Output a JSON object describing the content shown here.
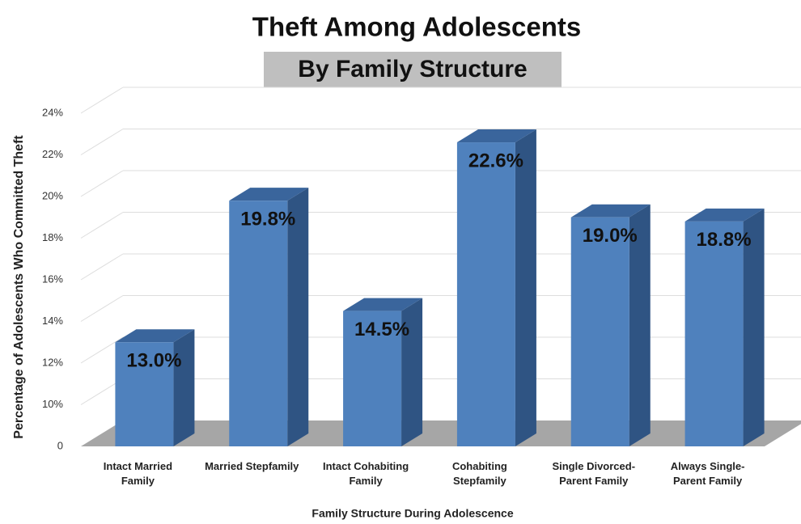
{
  "chart_data": {
    "type": "bar3d",
    "title": "Theft Among Adolescents",
    "subtitle": "By Family Structure",
    "x_label": "Family Structure During Adolescence",
    "y_label": "Percentage of Adolescents Who Committed Theft",
    "categories": [
      "Intact Married Family",
      "Married Stepfamily",
      "Intact Cohabiting Family",
      "Cohabiting Stepfamily",
      "Single Divorced-Parent Family",
      "Always Single-Parent Family"
    ],
    "values": [
      13.0,
      19.8,
      14.5,
      22.6,
      19.0,
      18.8
    ],
    "value_labels": [
      "13.0%",
      "19.8%",
      "14.5%",
      "22.6%",
      "19.0%",
      "18.8%"
    ],
    "color": "#4f81bd",
    "ylim": [
      0,
      24
    ],
    "yticks": [
      0,
      {
        "value": 10,
        "label": "10%"
      },
      {
        "value": 12,
        "label": "12%"
      },
      {
        "value": 14,
        "label": "14%"
      },
      {
        "value": 16,
        "label": "16%"
      },
      {
        "value": 18,
        "label": "18%"
      },
      {
        "value": 20,
        "label": "20%"
      },
      {
        "value": 22,
        "label": "22%"
      },
      {
        "value": 24,
        "label": "24%"
      }
    ],
    "grid": true
  }
}
